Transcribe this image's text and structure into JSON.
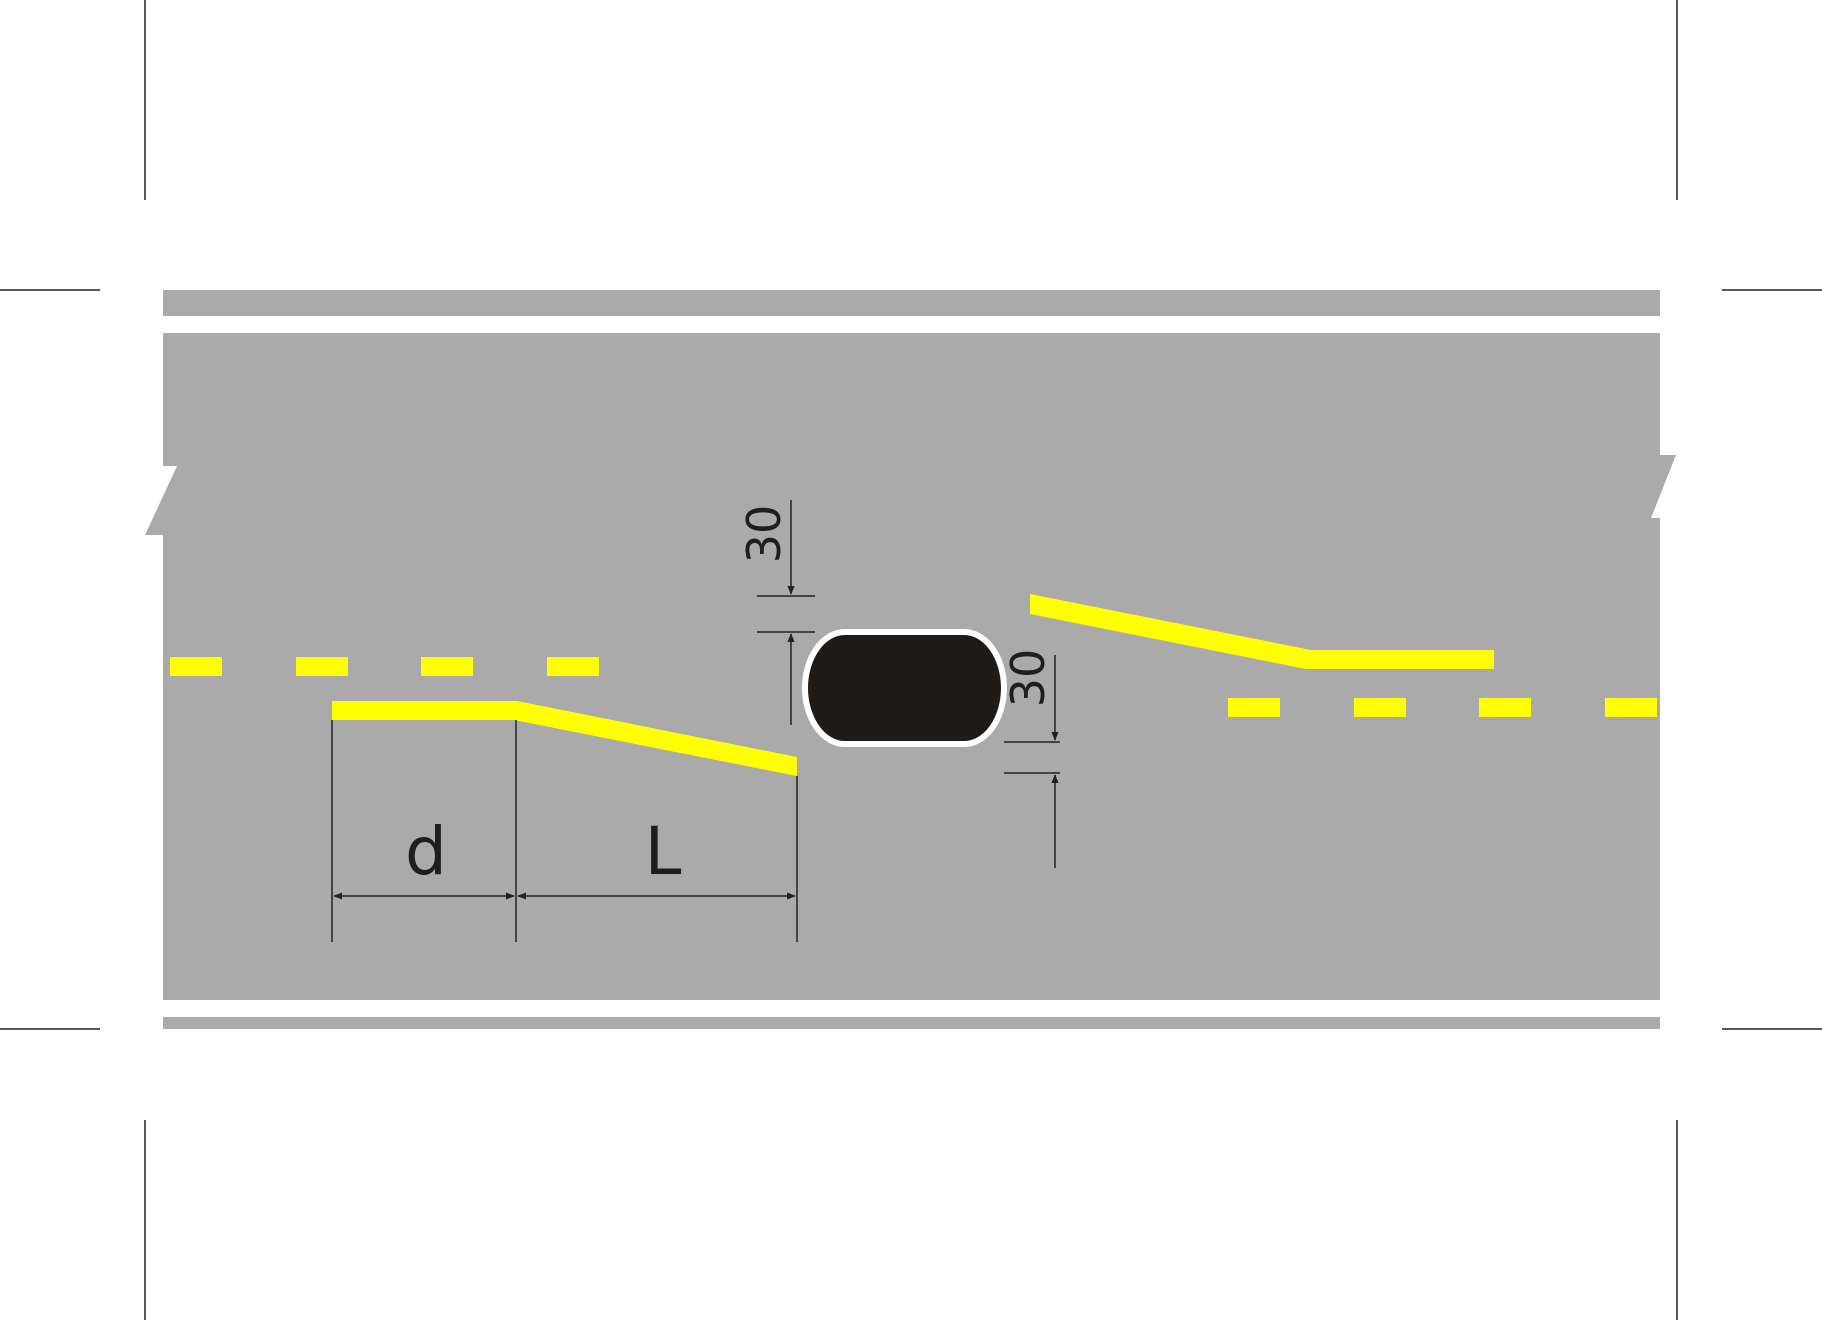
{
  "labels": {
    "d": "d",
    "L": "L",
    "offset_top": "30",
    "offset_bottom": "30"
  },
  "colors": {
    "background": "#ffffff",
    "pavement": "#aaaaaa",
    "edge_line": "#ffffff",
    "lane_marking": "#ffff00",
    "island_fill": "#1f1b18",
    "island_outline": "#ffffff",
    "dimension_line": "#222222"
  }
}
